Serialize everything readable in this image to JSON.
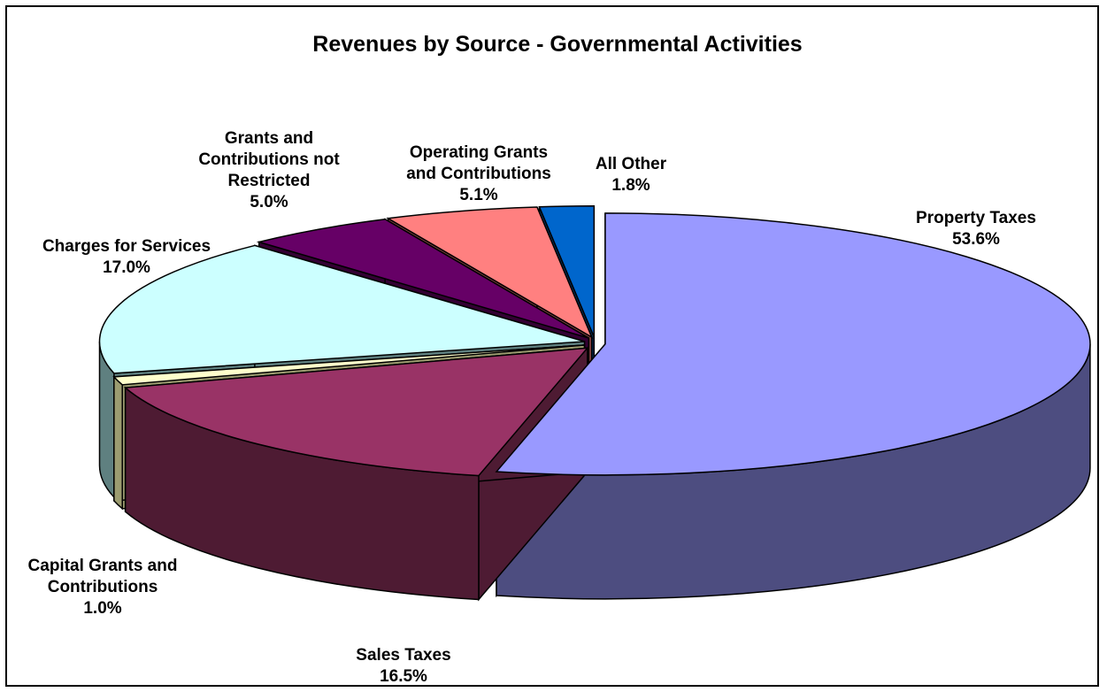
{
  "chart_data": {
    "type": "pie",
    "title": "Revenues by Source - Governmental Activities",
    "three_d": true,
    "exploded": true,
    "legend": "none",
    "slices": [
      {
        "label": "Property Taxes",
        "value": 53.6,
        "value_label": "53.6%",
        "color": "#9999ff",
        "side_color": "#4d4d80"
      },
      {
        "label": "Sales Taxes",
        "value": 16.5,
        "value_label": "16.5%",
        "color": "#993366",
        "side_color": "#4e1b33"
      },
      {
        "label": "Capital Grants and Contributions",
        "value": 1.0,
        "value_label": "1.0%",
        "color": "#ffffcc",
        "side_color": "#9c9c70"
      },
      {
        "label": "Charges for Services",
        "value": 17.0,
        "value_label": "17.0%",
        "color": "#ccffff",
        "side_color": "#5f8080"
      },
      {
        "label": "Grants and Contributions not Restricted",
        "value": 5.0,
        "value_label": "5.0%",
        "color": "#660066",
        "side_color": "#330033"
      },
      {
        "label": "Operating Grants and Contributions",
        "value": 5.1,
        "value_label": "5.1%",
        "color": "#ff8080",
        "side_color": "#804040"
      },
      {
        "label": "All Other",
        "value": 1.8,
        "value_label": "1.8%",
        "color": "#0066cc",
        "side_color": "#003366"
      }
    ]
  }
}
